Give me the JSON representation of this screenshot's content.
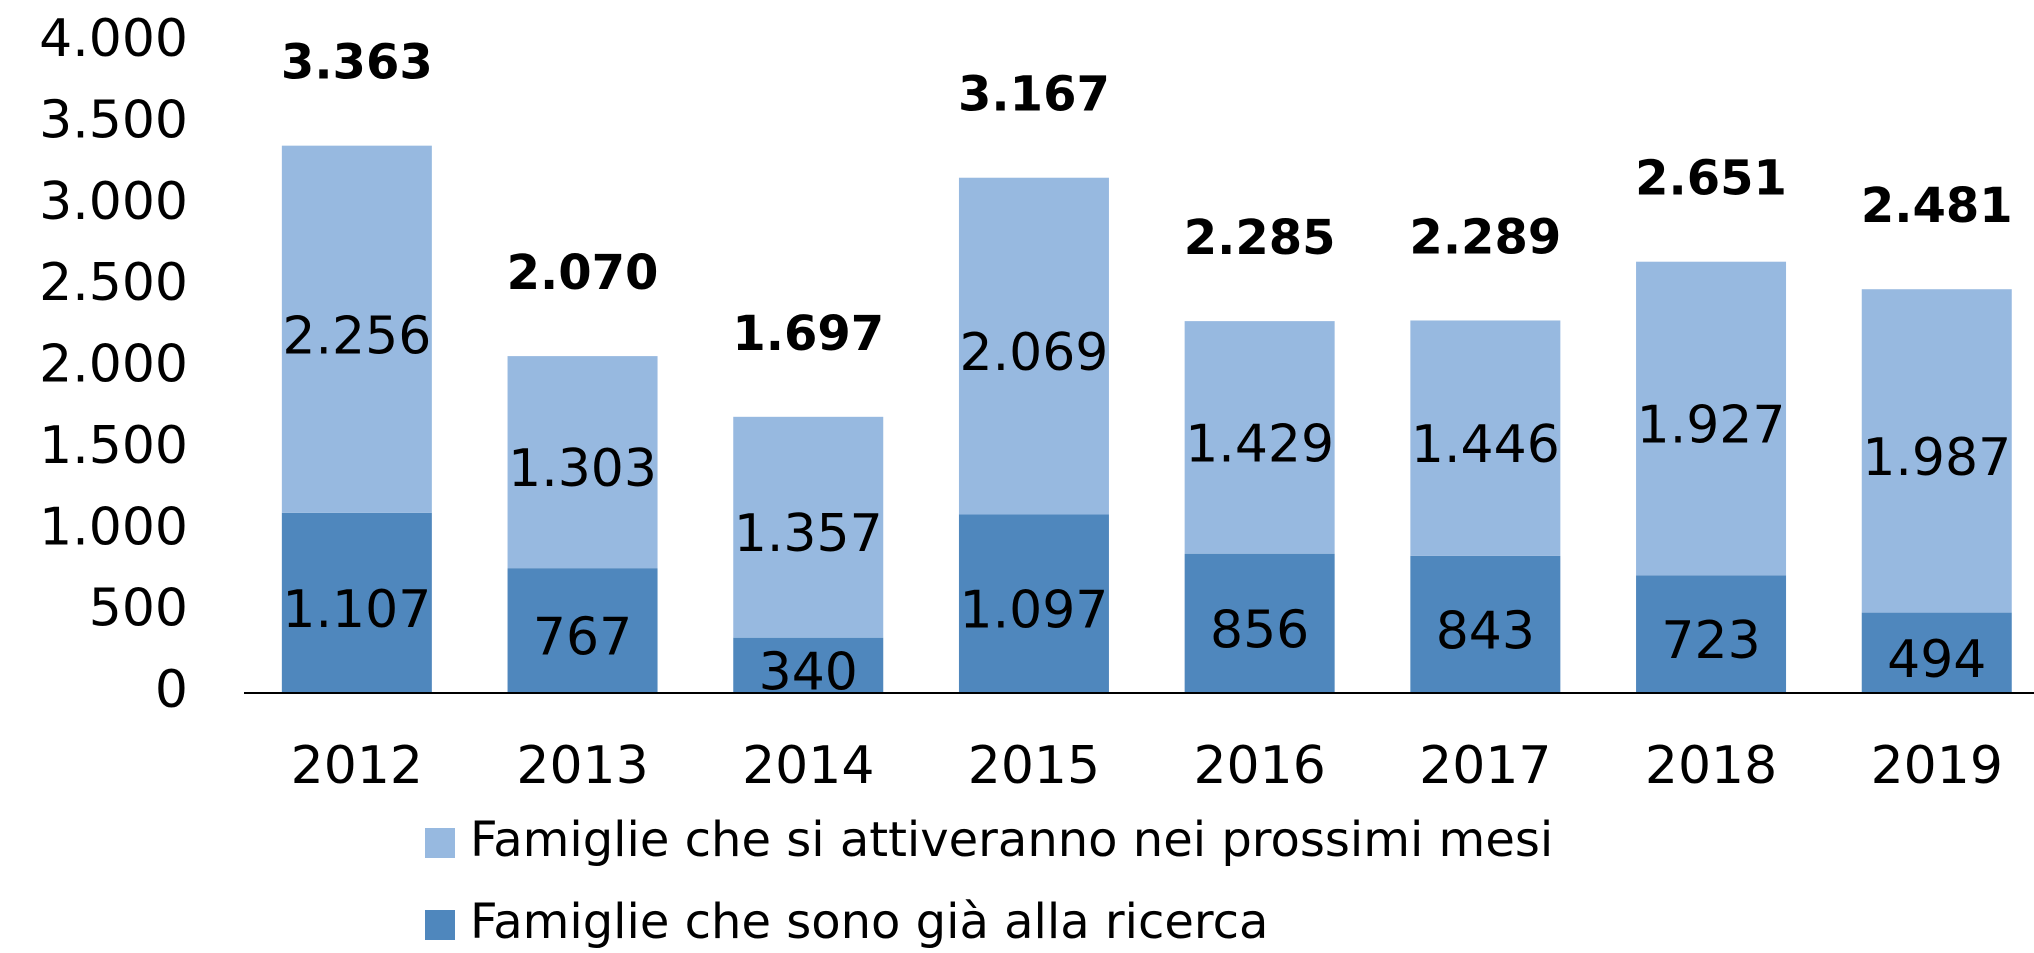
{
  "chart_data": {
    "type": "stacked_bar",
    "categories": [
      "2012",
      "2013",
      "2014",
      "2015",
      "2016",
      "2017",
      "2018",
      "2019"
    ],
    "series": [
      {
        "name": "Famiglie che sono già alla ricerca",
        "color": "#4f87bd",
        "values": [
          1107,
          767,
          340,
          1097,
          856,
          843,
          723,
          494
        ],
        "value_labels": [
          "1.107",
          "767",
          "340",
          "1.097",
          "856",
          "843",
          "723",
          "494"
        ]
      },
      {
        "name": "Famiglie che si attiveranno nei prossimi mesi",
        "color": "#97b9e0",
        "values": [
          2256,
          1303,
          1357,
          2069,
          1429,
          1446,
          1927,
          1987
        ],
        "value_labels": [
          "2.256",
          "1.303",
          "1.357",
          "2.069",
          "1.429",
          "1.446",
          "1.927",
          "1.987"
        ]
      }
    ],
    "totals": {
      "values": [
        3363,
        2070,
        1697,
        3167,
        2285,
        2289,
        2651,
        2481
      ],
      "value_labels": [
        "3.363",
        "2.070",
        "1.697",
        "3.167",
        "2.285",
        "2.289",
        "2.651",
        "2.481"
      ]
    },
    "ylim": [
      0,
      4000
    ],
    "yticks": [
      0,
      500,
      {
        "value": 1000,
        "label": "1.000"
      },
      {
        "value": 1500,
        "label": "1.500"
      },
      {
        "value": 2000,
        "label": "2.000"
      },
      {
        "value": 2500,
        "label": "2.500"
      },
      {
        "value": 3000,
        "label": "3.000"
      },
      {
        "value": 3500,
        "label": "3.500"
      },
      {
        "value": 4000,
        "label": "4.000"
      }
    ],
    "legend": "bottom"
  }
}
